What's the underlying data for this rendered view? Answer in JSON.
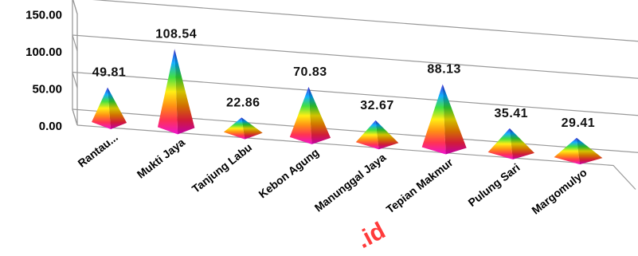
{
  "chart_data": {
    "type": "bar",
    "style": "3d-pyramid",
    "categories": [
      "Rantau...",
      "Mukti Jaya",
      "Tanjung Labu",
      "Kebon Agung",
      "Manunggal Jaya",
      "Tepian Makmur",
      "Pulung Sari",
      "Margomulyo"
    ],
    "values": [
      49.81,
      108.54,
      22.86,
      70.83,
      32.67,
      88.13,
      35.41,
      29.41
    ],
    "value_labels": [
      "49.81",
      "108.54",
      "22.86",
      "70.83",
      "32.67",
      "88.13",
      "35.41",
      "29.41"
    ],
    "yticks": [
      "0.00",
      "50.00",
      "100.00",
      "150.00"
    ],
    "ylim": [
      0,
      150
    ],
    "grid": true,
    "legend": "none",
    "colors": {
      "apex": "#3322dd",
      "gradient": [
        "#3322dd",
        "#00aaff",
        "#33dd33",
        "#ffee00",
        "#ff8800",
        "#ff2244",
        "#ee00cc"
      ],
      "gridline": "#9a9a9a",
      "watermark": "#ff1a1a"
    },
    "watermark": ".id"
  }
}
